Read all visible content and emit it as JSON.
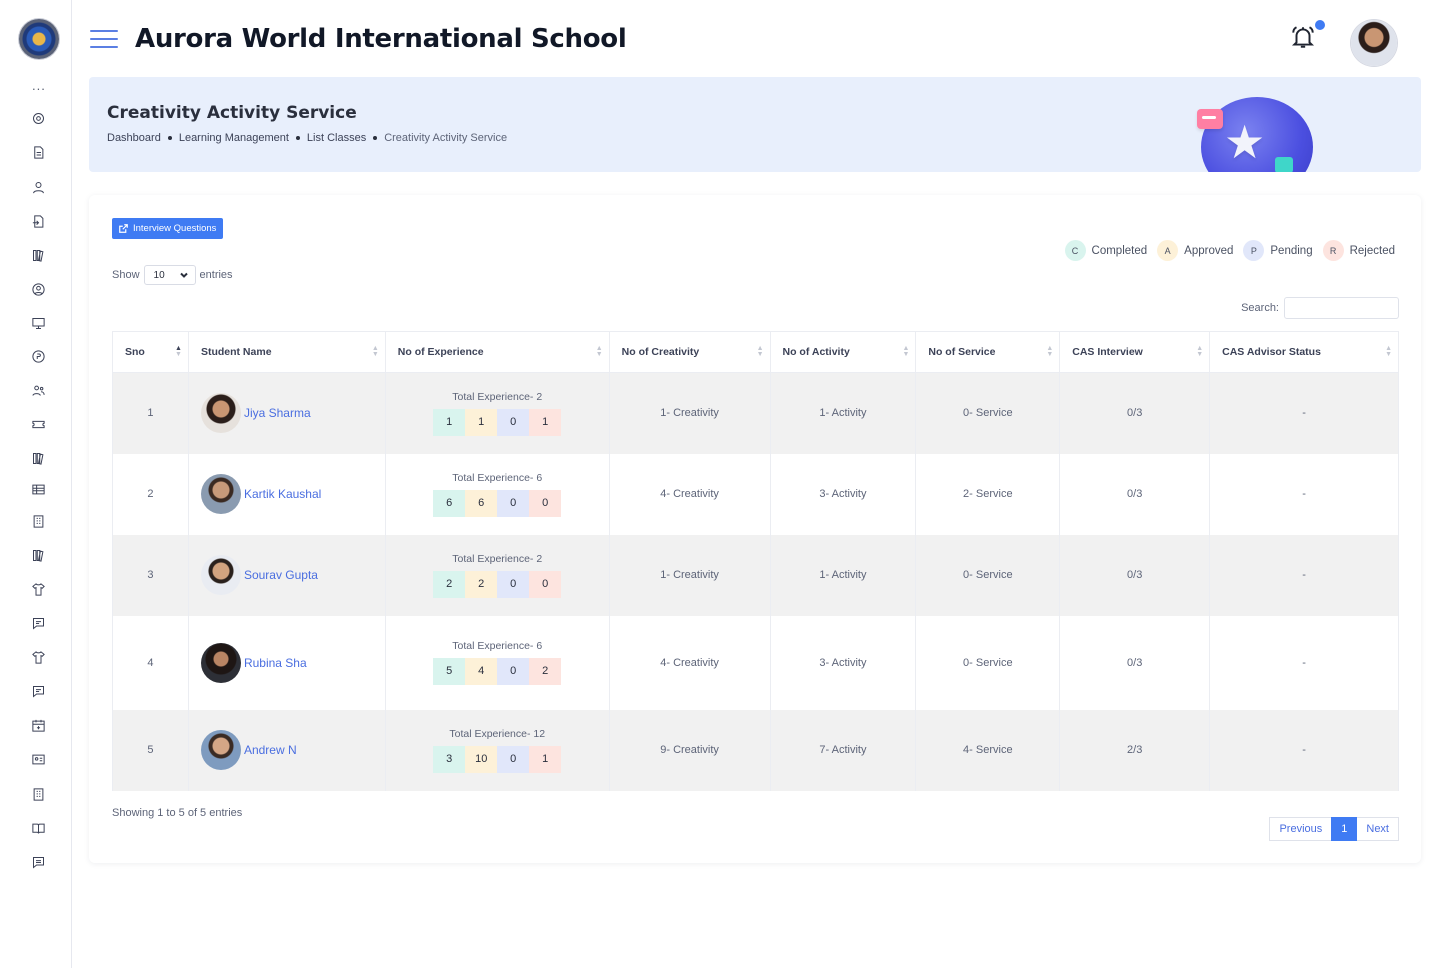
{
  "header": {
    "school_name": "Aurora World International School"
  },
  "sidebar": {
    "more_label": "...",
    "icons": [
      "settings-icon",
      "document-icon",
      "user-icon",
      "file-export-icon",
      "library-icon",
      "user-circle-icon",
      "monitor-icon",
      "coin-icon",
      "users-icon",
      "ticket-icon",
      "library-icon",
      "table-icon",
      "building-icon",
      "library-icon",
      "shirt-icon",
      "chat-edit-icon",
      "shirt-icon",
      "chat-edit-icon",
      "calendar-add-icon",
      "id-card-icon",
      "building-icon",
      "book-open-icon",
      "message-icon"
    ]
  },
  "banner": {
    "title": "Creativity Activity Service",
    "breadcrumb": [
      "Dashboard",
      "Learning Management",
      "List Classes",
      "Creativity Activity Service"
    ]
  },
  "toolbar": {
    "interview_button": "Interview Questions",
    "show_label": "Show",
    "entries_value": "10",
    "entries_label": "entries",
    "search_label": "Search:",
    "search_placeholder": ""
  },
  "legend": [
    {
      "letter": "C",
      "label": "Completed",
      "color": "#d9f4ee"
    },
    {
      "letter": "A",
      "label": "Approved",
      "color": "#fdf1d8"
    },
    {
      "letter": "P",
      "label": "Pending",
      "color": "#e1e7fa"
    },
    {
      "letter": "R",
      "label": "Rejected",
      "color": "#fde4df"
    }
  ],
  "table": {
    "columns": [
      "Sno",
      "Student Name",
      "No of Experience",
      "No of Creativity",
      "No of Activity",
      "No of Service",
      "CAS Interview",
      "CAS Advisor Status"
    ],
    "rows": [
      {
        "sno": "1",
        "name": "Jiya Sharma",
        "total": "Total Experience- 2",
        "c": "1",
        "a": "1",
        "p": "0",
        "r": "1",
        "creativity": "1- Creativity",
        "activity": "1- Activity",
        "service": "0- Service",
        "interview": "0/3",
        "advisor": "-"
      },
      {
        "sno": "2",
        "name": "Kartik Kaushal",
        "total": "Total Experience- 6",
        "c": "6",
        "a": "6",
        "p": "0",
        "r": "0",
        "creativity": "4- Creativity",
        "activity": "3- Activity",
        "service": "2- Service",
        "interview": "0/3",
        "advisor": "-"
      },
      {
        "sno": "3",
        "name": "Sourav Gupta",
        "total": "Total Experience- 2",
        "c": "2",
        "a": "2",
        "p": "0",
        "r": "0",
        "creativity": "1- Creativity",
        "activity": "1- Activity",
        "service": "0- Service",
        "interview": "0/3",
        "advisor": "-"
      },
      {
        "sno": "4",
        "name": "Rubina Sha",
        "total": "Total Experience- 6",
        "c": "5",
        "a": "4",
        "p": "0",
        "r": "2",
        "creativity": "4- Creativity",
        "activity": "3- Activity",
        "service": "0- Service",
        "interview": "0/3",
        "advisor": "-"
      },
      {
        "sno": "5",
        "name": "Andrew N",
        "total": "Total Experience- 12",
        "c": "3",
        "a": "10",
        "p": "0",
        "r": "1",
        "creativity": "9- Creativity",
        "activity": "7- Activity",
        "service": "4- Service",
        "interview": "2/3",
        "advisor": "-"
      }
    ]
  },
  "footer": {
    "info": "Showing 1 to 5 of 5 entries",
    "previous": "Previous",
    "current_page": "1",
    "next": "Next"
  }
}
